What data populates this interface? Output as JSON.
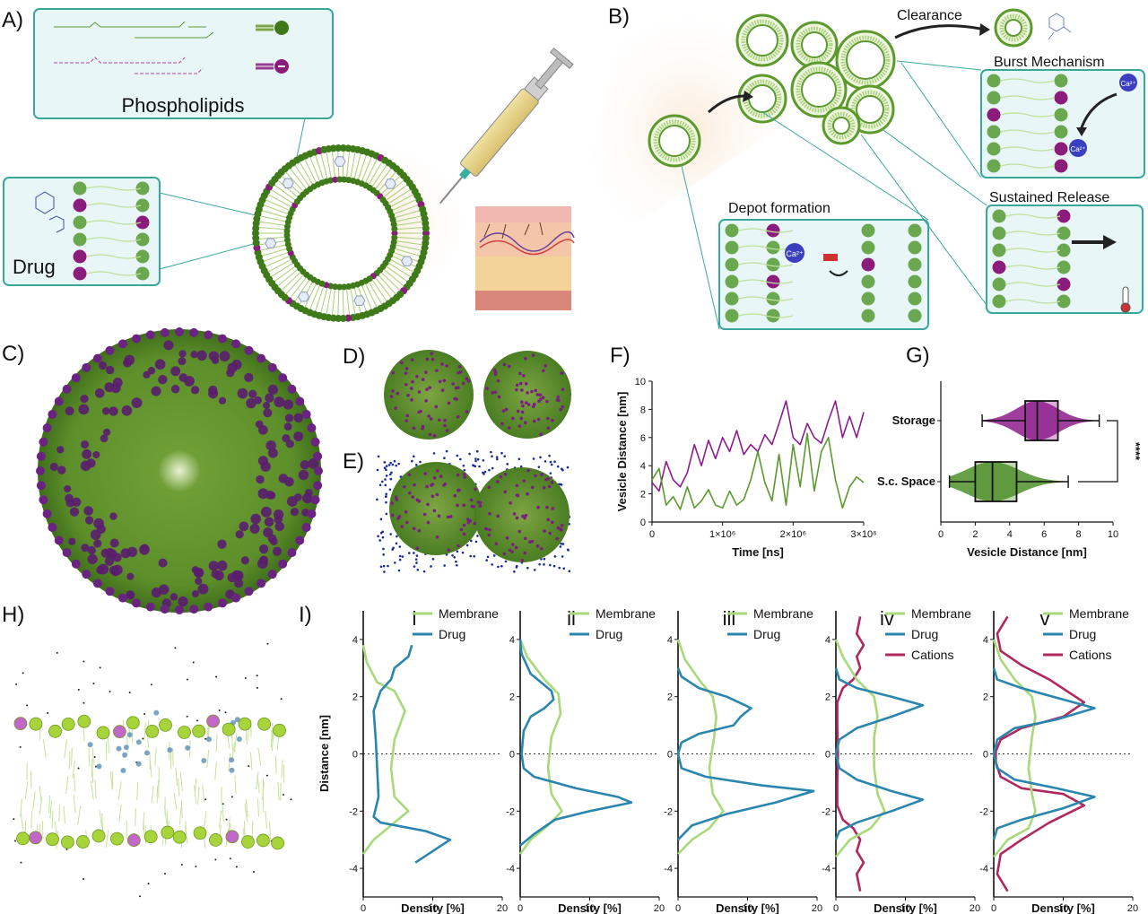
{
  "panel_labels": [
    "A)",
    "B)",
    "C)",
    "D)",
    "E)",
    "F)",
    "G)",
    "H)",
    "I)"
  ],
  "panel_a": {
    "phospholipids_label": "Phospholipids",
    "drug_label": "Drug"
  },
  "panel_b": {
    "clearance_label": "Clearance",
    "burst_label": "Burst Mechanism",
    "sustained_label": "Sustained Release",
    "depot_label": "Depot formation",
    "ca_label": "Ca²⁺",
    "colors": {
      "teal_frame": "#3aa79d",
      "vesicle_green": "#5c9a2e",
      "anion_purple": "#8a1c7c",
      "cation_blue": "#3a3fc0"
    }
  },
  "chart_data": [
    {
      "id": "F",
      "type": "line",
      "xlabel": "Time [ns]",
      "ylabel": "Vesicle Distance [nm]",
      "xlim": [
        0,
        3000000
      ],
      "ylim": [
        0,
        10
      ],
      "xticks": [
        "0",
        "1×10⁶",
        "2×10⁶",
        "3×10⁶"
      ],
      "yticks": [
        "0",
        "2",
        "4",
        "6",
        "8",
        "10"
      ],
      "series": [
        {
          "color": "#8e1c8c",
          "x": [
            0,
            100000,
            200000,
            300000,
            400000,
            500000,
            600000,
            700000,
            800000,
            900000,
            1000000,
            1100000,
            1200000,
            1300000,
            1400000,
            1500000,
            1600000,
            1700000,
            1800000,
            1900000,
            2000000,
            2100000,
            2200000,
            2300000,
            2400000,
            2500000,
            2600000,
            2700000,
            2800000,
            2900000,
            3000000
          ],
          "y": [
            2.8,
            2.2,
            4.3,
            3.0,
            2.5,
            3.5,
            5.5,
            4.0,
            5.8,
            4.5,
            6.0,
            5.0,
            6.5,
            4.8,
            5.5,
            5.0,
            6.2,
            5.5,
            7.0,
            8.6,
            6.0,
            5.5,
            7.0,
            6.0,
            5.6,
            7.2,
            8.6,
            6.0,
            7.5,
            6.0,
            7.8
          ]
        },
        {
          "color": "#5a9a2e",
          "x": [
            0,
            100000,
            200000,
            300000,
            400000,
            500000,
            600000,
            700000,
            800000,
            900000,
            1000000,
            1100000,
            1200000,
            1300000,
            1400000,
            1500000,
            1600000,
            1700000,
            1800000,
            1900000,
            2000000,
            2100000,
            2200000,
            2300000,
            2400000,
            2500000,
            2600000,
            2700000,
            2800000,
            2900000,
            3000000
          ],
          "y": [
            3.0,
            3.8,
            1.2,
            1.8,
            0.9,
            2.5,
            1.0,
            1.5,
            2.3,
            1.2,
            1.0,
            2.2,
            1.2,
            1.6,
            3.0,
            5.0,
            2.8,
            1.5,
            4.8,
            1.2,
            5.5,
            2.5,
            6.3,
            2.2,
            5.0,
            6.0,
            3.0,
            1.0,
            2.5,
            3.2,
            2.8
          ]
        }
      ]
    },
    {
      "id": "G",
      "type": "box",
      "xlabel": "Vesicle Distance [nm]",
      "xlim": [
        0,
        10
      ],
      "xticks": [
        "0",
        "2",
        "4",
        "6",
        "8",
        "10"
      ],
      "categories": [
        "Storage",
        "S.c. Space"
      ],
      "significance": "****",
      "series": [
        {
          "name": "Storage",
          "color": "#8e1c8c",
          "min": 2.4,
          "q1": 4.9,
          "median": 5.6,
          "q3": 6.8,
          "max": 9.2
        },
        {
          "name": "S.c. Space",
          "color": "#4f8f2a",
          "min": 0.5,
          "q1": 2.0,
          "median": 3.0,
          "q3": 4.4,
          "max": 7.4
        }
      ]
    },
    {
      "id": "I",
      "type": "line",
      "xlabel": "Density [%]",
      "ylabel": "Distance [nm]",
      "xlim": [
        0,
        20
      ],
      "ylim": [
        -5,
        5
      ],
      "xticks": [
        "0",
        "10",
        "20"
      ],
      "yticks": [
        "4",
        "2",
        "0",
        "-2",
        "-4"
      ],
      "colors": {
        "membrane": "#a8d97a",
        "drug": "#2a86ae",
        "cations": "#b0285f"
      },
      "legend": {
        "membrane": "Membrane",
        "drug": "Drug",
        "cations": "Cations"
      },
      "subplots": [
        {
          "label": "i",
          "membrane": {
            "x": [
              0,
              0.5,
              2,
              4.5,
              6,
              4.5,
              4,
              4.5,
              6.5,
              4,
              1.5,
              0
            ],
            "y": [
              3.8,
              3.2,
              2.5,
              2.2,
              1.5,
              0.5,
              -0.5,
              -1.5,
              -2.0,
              -2.5,
              -3.0,
              -3.5
            ]
          },
          "drug": {
            "x": [
              7,
              6.5,
              4.5,
              4,
              2.5,
              1.5,
              1.8,
              2,
              2.2,
              1.5,
              2.5,
              9,
              12.5,
              7.5
            ],
            "y": [
              3.8,
              3.4,
              3.0,
              2.6,
              2.2,
              1.5,
              0.5,
              -0.5,
              -1.5,
              -2.2,
              -2.4,
              -2.7,
              -3.0,
              -3.8
            ]
          },
          "drug_legend_first": true
        },
        {
          "label": "ii",
          "membrane": {
            "x": [
              0,
              1,
              3.5,
              5.5,
              5.8,
              4.5,
              4,
              4.5,
              6,
              4,
              1.5,
              0
            ],
            "y": [
              4.0,
              3.4,
              2.6,
              2.1,
              1.4,
              0.6,
              -0.5,
              -1.4,
              -2.0,
              -2.5,
              -3.0,
              -3.5
            ]
          },
          "drug": {
            "x": [
              0,
              0.2,
              1.5,
              4.5,
              4.8,
              3.5,
              1.5,
              0.5,
              0.2,
              0.5,
              2,
              8,
              14,
              16,
              10,
              5,
              2,
              0
            ],
            "y": [
              4.0,
              3.5,
              2.8,
              2.2,
              1.9,
              1.6,
              1.3,
              0.8,
              0,
              -0.5,
              -0.8,
              -1.2,
              -1.5,
              -1.7,
              -2.0,
              -2.3,
              -2.8,
              -3.2
            ]
          }
        },
        {
          "label": "iii",
          "membrane": {
            "x": [
              0,
              1,
              3,
              5,
              5.5,
              5.2,
              4.5,
              5,
              6.5,
              4.5,
              2,
              0
            ],
            "y": [
              4.0,
              3.3,
              2.6,
              2.0,
              1.3,
              0.6,
              -0.5,
              -1.4,
              -2.0,
              -2.6,
              -3.0,
              -3.5
            ]
          },
          "drug": {
            "x": [
              0,
              0.5,
              3,
              7,
              10.5,
              9,
              8,
              3,
              0.5,
              0,
              0.5,
              4,
              12,
              19.5,
              14,
              7,
              2,
              0
            ],
            "y": [
              3.0,
              2.7,
              2.3,
              2.0,
              1.6,
              1.3,
              1.0,
              0.7,
              0.4,
              0,
              -0.5,
              -0.8,
              -1.1,
              -1.3,
              -1.7,
              -2.1,
              -2.5,
              -3.0
            ]
          }
        },
        {
          "label": "iv",
          "membrane": {
            "x": [
              0,
              1,
              3,
              5.5,
              6,
              5.5,
              5.5,
              6,
              7,
              5,
              2,
              0
            ],
            "y": [
              4.0,
              3.4,
              2.6,
              2.0,
              1.3,
              0.6,
              -0.5,
              -1.4,
              -2.0,
              -2.6,
              -3.0,
              -3.6
            ]
          },
          "drug": {
            "x": [
              0,
              0.5,
              3,
              8,
              12.5,
              8,
              3,
              0.5,
              0,
              0.5,
              3,
              8,
              12.5,
              8,
              3,
              0.5,
              0
            ],
            "y": [
              3.0,
              2.6,
              2.3,
              2.0,
              1.7,
              1.3,
              0.9,
              0.5,
              0,
              -0.5,
              -0.9,
              -1.3,
              -1.6,
              -2.0,
              -2.4,
              -2.7,
              -3.0
            ]
          },
          "cations": {
            "x": [
              3.5,
              3,
              4,
              3,
              3.5,
              2.5,
              1,
              0.2,
              0.2,
              0.3,
              0.2,
              0.2,
              1,
              2.5,
              3.5,
              3,
              4,
              3,
              3.5
            ],
            "y": [
              4.8,
              4.2,
              3.8,
              3.4,
              3.0,
              2.6,
              2.3,
              1.8,
              1.0,
              0,
              -1.0,
              -1.8,
              -2.3,
              -2.6,
              -3.0,
              -3.4,
              -3.8,
              -4.2,
              -4.8
            ]
          }
        },
        {
          "label": "v",
          "membrane": {
            "x": [
              0,
              1,
              3,
              5.5,
              6,
              5.5,
              5,
              5.5,
              6,
              5,
              2,
              0
            ],
            "y": [
              4.0,
              3.3,
              2.6,
              2.0,
              1.3,
              0.6,
              -0.5,
              -1.4,
              -2.0,
              -2.6,
              -3.0,
              -3.6
            ]
          },
          "drug": {
            "x": [
              0,
              0.5,
              4,
              10,
              14.5,
              9,
              3,
              0.5,
              0,
              0.5,
              3,
              9,
              14.5,
              10,
              4,
              0.5,
              0
            ],
            "y": [
              3.0,
              2.6,
              2.3,
              1.9,
              1.6,
              1.2,
              0.9,
              0.5,
              0,
              -0.5,
              -0.9,
              -1.2,
              -1.5,
              -1.9,
              -2.3,
              -2.6,
              -3.0
            ]
          },
          "cations": {
            "x": [
              2,
              0.5,
              1,
              4,
              8,
              13,
              10,
              4,
              1,
              0.3,
              0.3,
              1,
              4,
              10,
              13,
              8,
              4,
              1,
              0.5,
              2
            ],
            "y": [
              4.8,
              4.2,
              3.6,
              3.1,
              2.6,
              1.8,
              1.3,
              0.9,
              0.5,
              0.1,
              -0.3,
              -0.8,
              -1.2,
              -1.4,
              -1.8,
              -2.4,
              -3.0,
              -3.5,
              -4.2,
              -4.8
            ]
          }
        }
      ]
    }
  ]
}
